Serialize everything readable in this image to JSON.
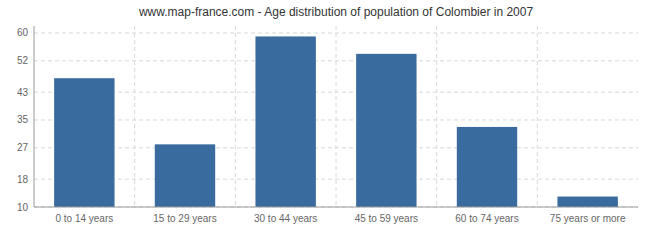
{
  "chart_data": {
    "type": "bar",
    "title": "www.map-france.com - Age distribution of population of Colombier in 2007",
    "categories": [
      "0 to 14 years",
      "15 to 29 years",
      "30 to 44 years",
      "45 to 59 years",
      "60 to 74 years",
      "75 years or more"
    ],
    "values": [
      47,
      28,
      59,
      54,
      33,
      13
    ],
    "color": "#3a6b9f",
    "ylim": [
      10,
      62
    ],
    "yticks": [
      10,
      18,
      27,
      35,
      43,
      52,
      60
    ],
    "grid": true
  }
}
